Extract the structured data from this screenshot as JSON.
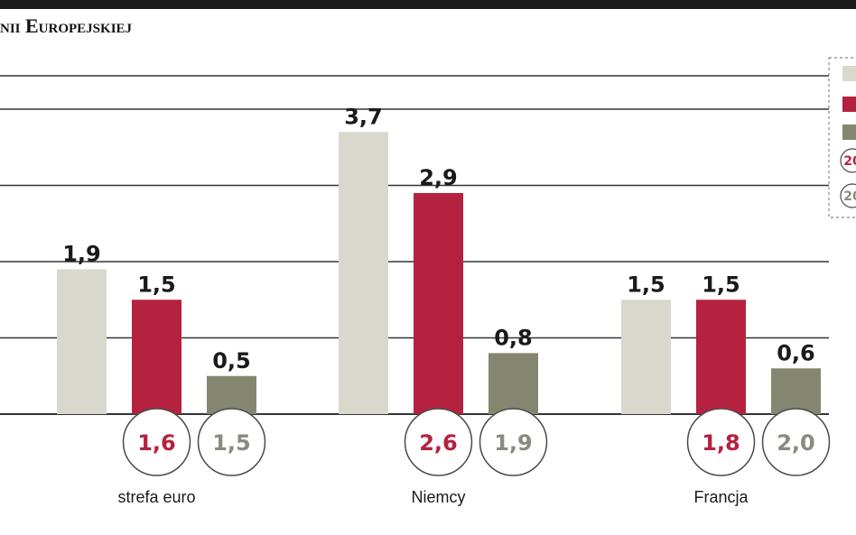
{
  "header": {
    "title": "nii Europejskiej"
  },
  "colors": {
    "series_1": "#d9d8cd",
    "series_2": "#b5223f",
    "series_3": "#858670",
    "circle_1_text": "#b5223f",
    "circle_2_text": "#8a8a80",
    "gridline": "#333333",
    "legend_border": "#888888"
  },
  "legend": {
    "placement": "top-right",
    "partial_icon_text": [
      "20",
      "20"
    ]
  },
  "chart_data": {
    "type": "bar",
    "title": "nii Europejskiej",
    "categories": [
      "strefa euro",
      "Niemcy",
      "Francja"
    ],
    "series": [
      {
        "values": [
          1.9,
          3.7,
          1.5
        ],
        "labels": [
          "1,9",
          "3,7",
          "1,5"
        ]
      },
      {
        "values": [
          1.5,
          2.9,
          1.5
        ],
        "labels": [
          "1,5",
          "2,9",
          "1,5"
        ]
      },
      {
        "values": [
          0.5,
          0.8,
          0.6
        ],
        "labels": [
          "0,5",
          "0,8",
          "0,6"
        ]
      }
    ],
    "circle_values": [
      {
        "values": [
          1.6,
          2.6,
          1.8
        ],
        "labels": [
          "1,6",
          "2,6",
          "1,8"
        ]
      },
      {
        "values": [
          1.5,
          1.9,
          2.0
        ],
        "labels": [
          "1,5",
          "1,9",
          "2,0"
        ]
      }
    ],
    "ylim": [
      0,
      4.5
    ],
    "grid": true,
    "xlabel": "",
    "ylabel": ""
  }
}
